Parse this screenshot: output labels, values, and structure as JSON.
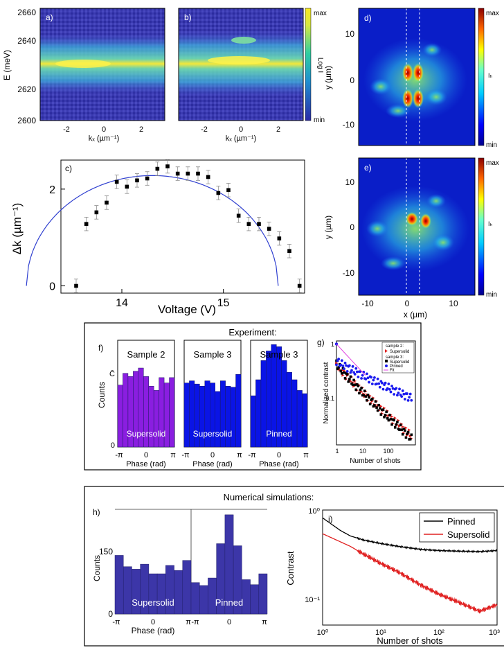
{
  "colors": {
    "purple": "#8a1ee0",
    "blue": "#0a14e6",
    "sim_fill": "#3c36a8",
    "fit_line": "#3040d0",
    "red": "#e02020",
    "magenta": "#e040e0"
  },
  "panels": {
    "a": {
      "label": "a)",
      "ylabel": "E (meV)",
      "xlabel": "kₓ (µm⁻¹)",
      "yticks": [
        "2660",
        "2640",
        "2620",
        "2600"
      ],
      "xticks": [
        "-2",
        "0",
        "2"
      ]
    },
    "b": {
      "label": "b)",
      "xlabel": "kₓ (µm⁻¹)",
      "xticks": [
        "-2",
        "0",
        "2"
      ],
      "colorbar": {
        "max": "max",
        "min": "min",
        "title": "Log I"
      }
    },
    "c": {
      "label": "c)",
      "ylabel": "Δk (µm⁻¹)",
      "xlabel": "Voltage (V)",
      "xticks": [
        "14",
        "15"
      ],
      "yticks": [
        "0",
        "2"
      ]
    },
    "d": {
      "label": "d)",
      "ylabel": "y (µm)",
      "yticks": [
        "10",
        "0",
        "-10"
      ],
      "colorbar": {
        "max": "max",
        "min": "min",
        "title": "Iₕ"
      }
    },
    "e": {
      "label": "e)",
      "ylabel": "y (µm)",
      "xlabel": "x (µm)",
      "yticks": [
        "10",
        "0",
        "-10"
      ],
      "xticks": [
        "-10",
        "0",
        "10"
      ],
      "colorbar": {
        "max": "max",
        "min": "min",
        "title": "Iₕ"
      }
    }
  },
  "experiment": {
    "title": "Experiment:",
    "f": {
      "label": "f)",
      "ylabel": "Counts",
      "ytick_top": "C̄",
      "ytick_zero": "0",
      "xlabel": "Phase (rad)",
      "xticks": [
        "-π",
        "0",
        "π"
      ],
      "hist": [
        {
          "title": "Sample 2",
          "inner": "Supersolid"
        },
        {
          "title": "Sample 3",
          "inner": "Supersolid"
        },
        {
          "title": "Sample 3",
          "inner": "Pinned"
        }
      ]
    },
    "g": {
      "label": "g)",
      "ylabel": "Normalized contrast",
      "xlabel": "Number of shots",
      "xticks": [
        "1",
        "10",
        "100"
      ],
      "yticks": [
        "1",
        "0.1"
      ],
      "legend": {
        "sample2": "sample 2:",
        "sample3": "sample 3:",
        "entries": [
          "Supersolid",
          "Supersolid",
          "Pinned",
          "Fit"
        ]
      }
    }
  },
  "simulation": {
    "title": "Numerical simulations:",
    "h": {
      "label": "h)",
      "ylabel": "Counts",
      "yticks": [
        "150",
        "0"
      ],
      "xlabel": "Phase (rad)",
      "xticks": [
        "-π",
        "0",
        "π"
      ],
      "hist": [
        {
          "inner": "Supersolid"
        },
        {
          "inner": "Pinned"
        }
      ]
    },
    "i": {
      "label": "i)",
      "ylabel": "Contrast",
      "xlabel": "Number of shots",
      "xticks": [
        "10⁰",
        "10¹",
        "10²",
        "10³"
      ],
      "yticks": [
        "10⁰",
        "10⁻¹"
      ],
      "legend": [
        "Pinned",
        "Supersolid"
      ]
    }
  },
  "chart_data": [
    {
      "id": "c",
      "type": "scatter",
      "xlim": [
        13.4,
        15.8
      ],
      "ylim": [
        -0.15,
        2.6
      ],
      "x": [
        13.55,
        13.65,
        13.75,
        13.85,
        13.95,
        14.05,
        14.15,
        14.25,
        14.35,
        14.45,
        14.55,
        14.65,
        14.75,
        14.85,
        14.95,
        15.05,
        15.15,
        15.25,
        15.35,
        15.45,
        15.55,
        15.65,
        15.75
      ],
      "y": [
        0.0,
        1.28,
        1.52,
        1.72,
        2.15,
        2.05,
        2.18,
        2.22,
        2.42,
        2.47,
        2.32,
        2.32,
        2.32,
        2.25,
        1.92,
        1.98,
        1.45,
        1.28,
        1.28,
        1.18,
        0.98,
        0.72,
        0.0
      ],
      "err": 0.14,
      "fit": {
        "x0": 14.3,
        "half_width": 1.24,
        "peak": 2.28
      }
    },
    {
      "id": "f",
      "type": "bar",
      "x_range": [
        "-π",
        "π"
      ],
      "series": [
        {
          "values": [
            0.58,
            0.69,
            0.66,
            0.71,
            0.74,
            0.66,
            0.57,
            0.53,
            0.65,
            0.6,
            0.65
          ]
        },
        {
          "values": [
            0.6,
            0.62,
            0.59,
            0.57,
            0.62,
            0.6,
            0.52,
            0.62,
            0.57,
            0.56,
            0.68
          ]
        },
        {
          "values": [
            0.48,
            0.63,
            0.81,
            0.9,
            0.96,
            0.94,
            0.81,
            0.7,
            0.63,
            0.53,
            0.5
          ]
        }
      ]
    },
    {
      "id": "g",
      "type": "scatter",
      "log_x": true,
      "log_y": true,
      "xlim": [
        1,
        1000
      ],
      "ylim": [
        0.045,
        1.1
      ],
      "series": [
        {
          "name": "Supersolid",
          "group": "sample 2:",
          "marker": "triangle",
          "color": "#e02020",
          "start": 0.55,
          "end": 0.06
        },
        {
          "name": "Supersolid",
          "group": "sample 3:",
          "marker": "square",
          "color": "#000000",
          "start": 0.55,
          "end": 0.055
        },
        {
          "name": "Pinned",
          "group": "sample 3:",
          "marker": "circle",
          "color": "#1a1aee",
          "start": 0.6,
          "end": 0.19
        },
        {
          "name": "Fit",
          "type": "line",
          "color": "#e040e0"
        }
      ]
    },
    {
      "id": "h",
      "type": "bar",
      "x_range": [
        "-π",
        "π"
      ],
      "ylim": [
        0,
        250
      ],
      "series": [
        {
          "values": [
            140,
            113,
            107,
            119,
            96,
            96,
            116,
            104,
            128
          ]
        },
        {
          "values": [
            75,
            68,
            86,
            168,
            237,
            163,
            82,
            70,
            96
          ]
        }
      ]
    },
    {
      "id": "i",
      "type": "line",
      "log_x": true,
      "log_y": true,
      "xlim": [
        1,
        1000
      ],
      "ylim": [
        0.055,
        1.0
      ],
      "series": [
        {
          "name": "Pinned",
          "color": "#000000",
          "x": [
            1,
            2,
            3,
            5,
            10,
            20,
            50,
            100,
            200,
            500,
            1000
          ],
          "y": [
            0.82,
            0.6,
            0.52,
            0.47,
            0.43,
            0.4,
            0.37,
            0.36,
            0.355,
            0.35,
            0.36
          ]
        },
        {
          "name": "Supersolid",
          "color": "#e02020",
          "x": [
            1,
            2,
            3,
            5,
            10,
            20,
            50,
            100,
            200,
            500,
            1000
          ],
          "y": [
            0.55,
            0.45,
            0.4,
            0.33,
            0.26,
            0.21,
            0.15,
            0.12,
            0.1,
            0.078,
            0.092
          ]
        }
      ]
    }
  ]
}
